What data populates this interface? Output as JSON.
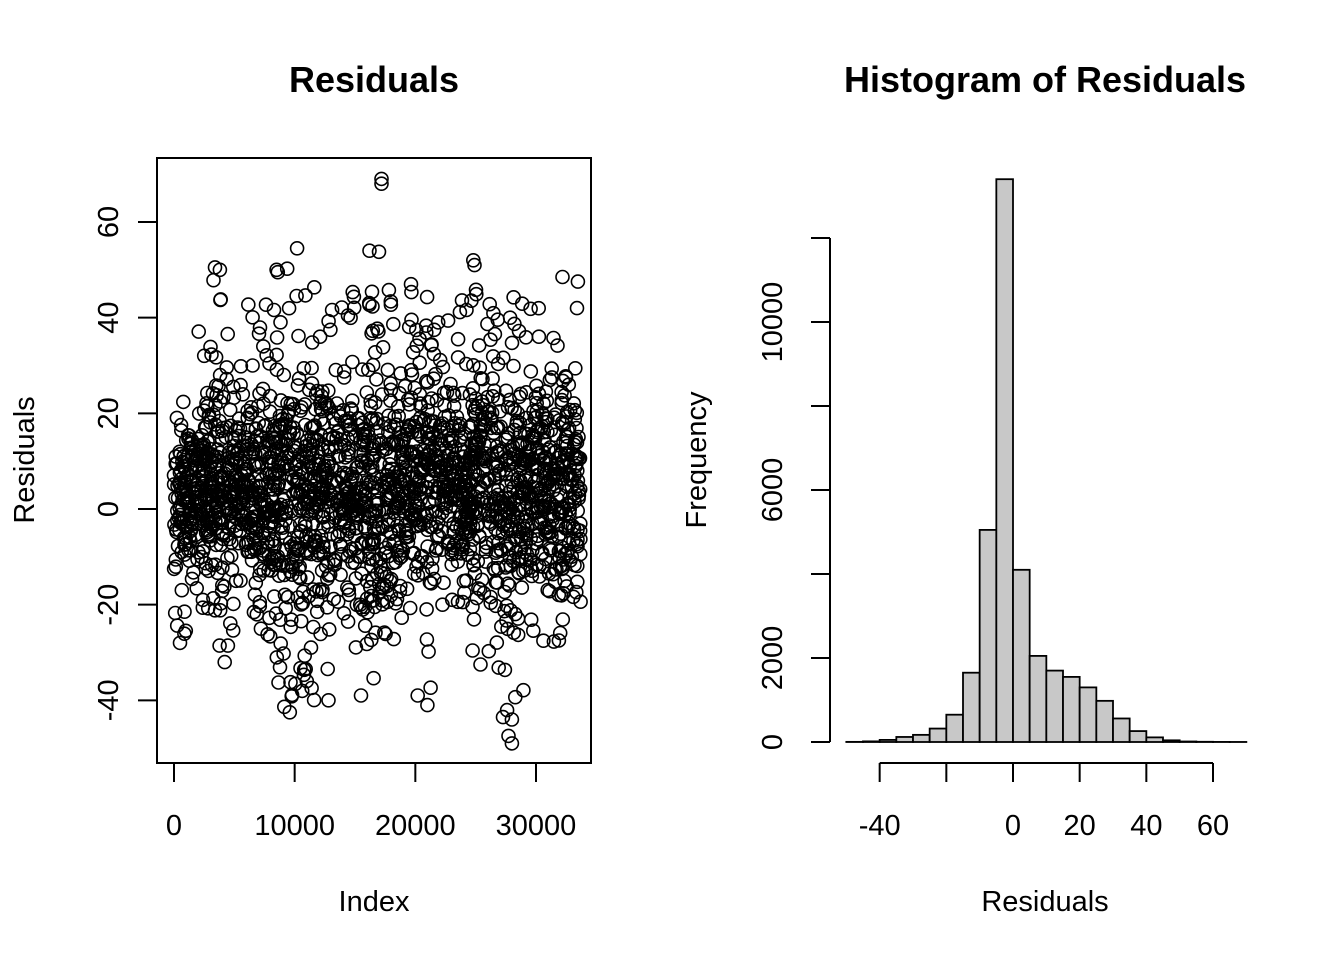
{
  "chart_data": [
    {
      "type": "scatter",
      "title": "Residuals",
      "xlabel": "Index",
      "ylabel": "Residuals",
      "xlim": [
        0,
        33700
      ],
      "ylim": [
        -50,
        70
      ],
      "x_ticks": [
        0,
        10000,
        20000,
        30000
      ],
      "y_ticks": [
        -40,
        -20,
        0,
        20,
        40,
        60
      ],
      "x_tick_labels": [
        "0",
        "10000",
        "20000",
        "30000"
      ],
      "y_tick_labels": [
        "-40",
        "-20",
        "0",
        "20",
        "40",
        "60"
      ],
      "marker": "open-circle",
      "n_points": 33700,
      "segments": [
        {
          "x_start": 0,
          "x_end": 1500,
          "center": 3,
          "low": -27,
          "high": 33
        },
        {
          "x_start": 1500,
          "x_end": 3000,
          "center": 5,
          "low": -22,
          "high": 38
        },
        {
          "x_start": 3000,
          "x_end": 5000,
          "center": 6,
          "low": -32,
          "high": 50
        },
        {
          "x_start": 5000,
          "x_end": 6200,
          "center": 5,
          "low": -15,
          "high": 45
        },
        {
          "x_start": 6200,
          "x_end": 8500,
          "center": 3,
          "low": -28,
          "high": 44
        },
        {
          "x_start": 8500,
          "x_end": 11000,
          "center": 2,
          "low": -42,
          "high": 54
        },
        {
          "x_start": 11000,
          "x_end": 13500,
          "center": 2,
          "low": -40,
          "high": 47
        },
        {
          "x_start": 13500,
          "x_end": 15200,
          "center": 4,
          "low": -30,
          "high": 46
        },
        {
          "x_start": 15200,
          "x_end": 17500,
          "center": 1,
          "low": -39,
          "high": 54
        },
        {
          "x_start": 17500,
          "x_end": 19500,
          "center": 3,
          "low": -30,
          "high": 47
        },
        {
          "x_start": 19500,
          "x_end": 21500,
          "center": 4,
          "low": -41,
          "high": 47
        },
        {
          "x_start": 21500,
          "x_end": 24500,
          "center": 5,
          "low": -20,
          "high": 45
        },
        {
          "x_start": 24500,
          "x_end": 26500,
          "center": 6,
          "low": -33,
          "high": 52
        },
        {
          "x_start": 26500,
          "x_end": 29000,
          "center": 2,
          "low": -49,
          "high": 45
        },
        {
          "x_start": 29000,
          "x_end": 31500,
          "center": 5,
          "low": -28,
          "high": 42
        },
        {
          "x_start": 31500,
          "x_end": 33700,
          "center": 6,
          "low": -27,
          "high": 48
        }
      ],
      "outliers": [
        {
          "x": 17200,
          "y": 69
        },
        {
          "x": 17200,
          "y": 68
        },
        {
          "x": 10200,
          "y": 54.5
        },
        {
          "x": 16200,
          "y": 54
        },
        {
          "x": 24800,
          "y": 52
        },
        {
          "x": 24900,
          "y": 51
        },
        {
          "x": 3400,
          "y": 50.5
        },
        {
          "x": 3800,
          "y": 50
        },
        {
          "x": 8500,
          "y": 50
        },
        {
          "x": 8600,
          "y": 49.5
        },
        {
          "x": 32200,
          "y": 48.5
        },
        {
          "x": 9600,
          "y": -42.5
        },
        {
          "x": 12800,
          "y": -40
        },
        {
          "x": 21000,
          "y": -41
        },
        {
          "x": 28000,
          "y": -49
        },
        {
          "x": 28000,
          "y": -44
        },
        {
          "x": 15500,
          "y": -39
        },
        {
          "x": 20200,
          "y": -39
        },
        {
          "x": 4200,
          "y": -32
        },
        {
          "x": 31900,
          "y": -27.5
        },
        {
          "x": 500,
          "y": -28
        },
        {
          "x": 25400,
          "y": -32.5
        }
      ]
    },
    {
      "type": "bar",
      "title": "Histogram of Residuals",
      "xlabel": "Residuals",
      "ylabel": "Frequency",
      "xlim": [
        -50,
        70
      ],
      "ylim": [
        0,
        13500
      ],
      "x_ticks": [
        -40,
        -20,
        0,
        20,
        40,
        60
      ],
      "x_tick_labels": [
        "-40",
        "",
        "0",
        "20",
        "40",
        "60"
      ],
      "y_ticks": [
        0,
        2000,
        4000,
        6000,
        8000,
        10000,
        12000
      ],
      "y_tick_labels": [
        "0",
        "2000",
        "",
        "6000",
        "",
        "10000",
        ""
      ],
      "bar_color": "#c8c8c8",
      "bin_edges": [
        -50,
        -45,
        -40,
        -35,
        -30,
        -25,
        -20,
        -15,
        -10,
        -5,
        0,
        5,
        10,
        15,
        20,
        25,
        30,
        35,
        40,
        45,
        50,
        55,
        60,
        65,
        70
      ],
      "counts": [
        3,
        15,
        50,
        120,
        170,
        320,
        650,
        1650,
        5050,
        13400,
        4100,
        2050,
        1700,
        1550,
        1300,
        980,
        560,
        260,
        110,
        40,
        12,
        5,
        2,
        1
      ]
    }
  ]
}
